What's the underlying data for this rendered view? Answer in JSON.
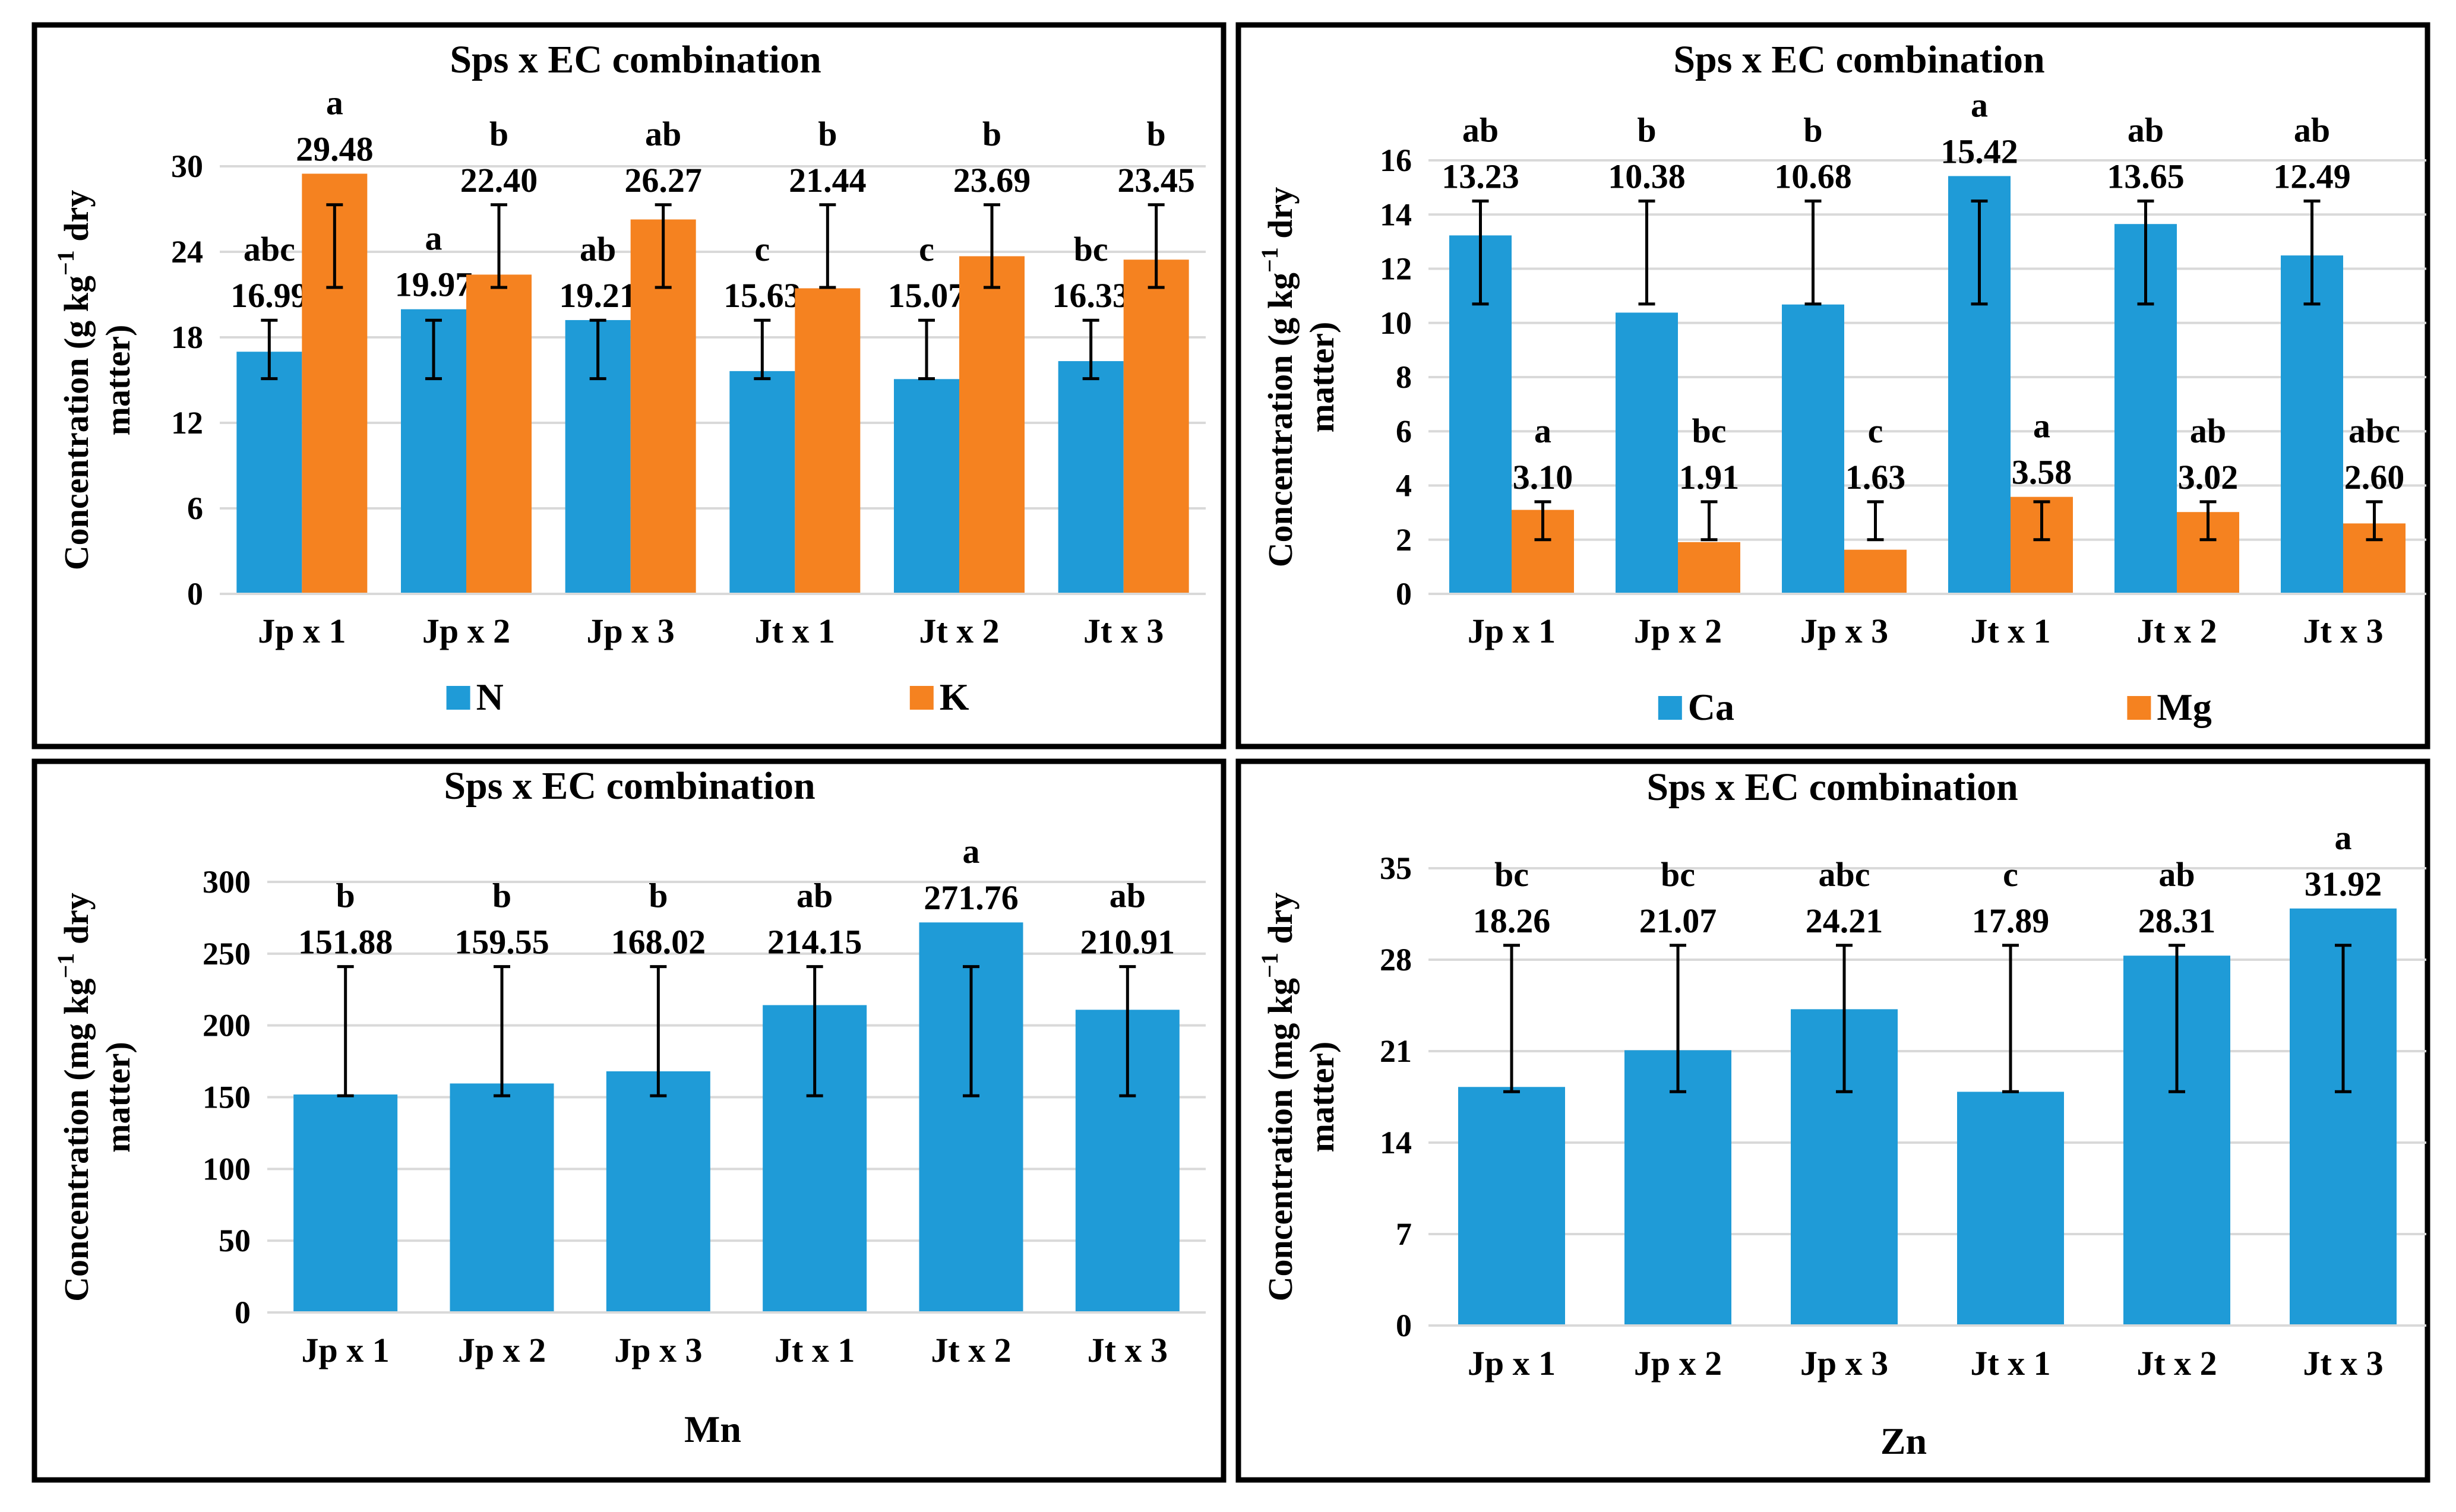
{
  "figure": {
    "colors": {
      "blue": "#1f9bd7",
      "orange": "#f58220",
      "grid": "#d9d9d9",
      "border": "#000000"
    }
  },
  "chart_data": [
    {
      "type": "bar",
      "title": "Sps x EC combination",
      "xlabel": "",
      "ylabel": [
        "Concentration (g kg",
        "−1",
        " dry",
        "matter)"
      ],
      "categories": [
        "Jp x 1",
        "Jp x 2",
        "Jp x 3",
        "Jt x 1",
        "Jt x 2",
        "Jt x 3"
      ],
      "ylim": [
        0,
        30
      ],
      "yticks": [
        0,
        6,
        12,
        18,
        24,
        30
      ],
      "series": [
        {
          "name": "N",
          "color": "#1f9bd7",
          "values": [
            16.99,
            19.97,
            19.21,
            15.63,
            15.07,
            16.33
          ],
          "value_labels": [
            "16.99",
            "19.97",
            "19.21",
            "15.63",
            "15.07",
            "16.33"
          ],
          "letters": [
            "abc",
            "a",
            "ab",
            "c",
            "c",
            "bc"
          ],
          "error_low": [
            15.1,
            15.1,
            15.1,
            15.1,
            15.1,
            15.1
          ],
          "error_high": [
            19.2,
            19.2,
            19.2,
            19.2,
            19.2,
            19.2
          ]
        },
        {
          "name": "K",
          "color": "#f58220",
          "values": [
            29.48,
            22.4,
            26.27,
            21.44,
            23.69,
            23.45
          ],
          "value_labels": [
            "29.48",
            "22.40",
            "26.27",
            "21.44",
            "23.69",
            "23.45"
          ],
          "letters": [
            "a",
            "b",
            "ab",
            "b",
            "b",
            "b"
          ],
          "error_low": [
            21.5,
            21.5,
            21.5,
            21.5,
            21.5,
            21.5
          ],
          "error_high": [
            27.3,
            27.3,
            27.3,
            27.3,
            27.3,
            27.3
          ]
        }
      ],
      "legend": [
        "N",
        "K"
      ],
      "legend_position": "bottom"
    },
    {
      "type": "bar",
      "title": "Sps x EC combination",
      "xlabel": "",
      "ylabel": [
        "Concentration (g kg",
        "−1",
        " dry",
        "matter)"
      ],
      "categories": [
        "Jp x 1",
        "Jp x 2",
        "Jp x 3",
        "Jt x 1",
        "Jt x 2",
        "Jt x 3"
      ],
      "ylim": [
        0,
        16
      ],
      "yticks": [
        0,
        2,
        4,
        6,
        8,
        10,
        12,
        14,
        16
      ],
      "series": [
        {
          "name": "Ca",
          "color": "#1f9bd7",
          "values": [
            13.23,
            10.38,
            10.68,
            15.42,
            13.65,
            12.49
          ],
          "value_labels": [
            "13.23",
            "10.38",
            "10.68",
            "15.42",
            "13.65",
            "12.49"
          ],
          "letters": [
            "ab",
            "b",
            "b",
            "a",
            "ab",
            "ab"
          ],
          "error_low": [
            10.7,
            10.7,
            10.7,
            10.7,
            10.7,
            10.7
          ],
          "error_high": [
            14.5,
            14.5,
            14.5,
            14.5,
            14.5,
            14.5
          ]
        },
        {
          "name": "Mg",
          "color": "#f58220",
          "values": [
            3.1,
            1.91,
            1.63,
            3.58,
            3.02,
            2.6
          ],
          "value_labels": [
            "3.10",
            "1.91",
            "1.63",
            "3.58",
            "3.02",
            "2.60"
          ],
          "letters": [
            "a",
            "bc",
            "c",
            "a",
            "ab",
            "abc"
          ],
          "error_low": [
            2.0,
            2.0,
            2.0,
            2.0,
            2.0,
            2.0
          ],
          "error_high": [
            3.4,
            3.4,
            3.4,
            3.4,
            3.4,
            3.4
          ]
        }
      ],
      "legend": [
        "Ca",
        "Mg"
      ],
      "legend_position": "bottom"
    },
    {
      "type": "bar",
      "title": "Sps x EC combination",
      "xlabel": "Mn",
      "ylabel": [
        "Concentration (mg kg",
        "−1",
        " dry",
        "matter)"
      ],
      "categories": [
        "Jp x 1",
        "Jp x 2",
        "Jp x 3",
        "Jt x 1",
        "Jt x 2",
        "Jt x 3"
      ],
      "ylim": [
        0,
        300
      ],
      "yticks": [
        0,
        50,
        100,
        150,
        200,
        250,
        300
      ],
      "series": [
        {
          "name": "Mn",
          "color": "#1f9bd7",
          "values": [
            151.88,
            159.55,
            168.02,
            214.15,
            271.76,
            210.91
          ],
          "value_labels": [
            "151.88",
            "159.55",
            "168.02",
            "214.15",
            "271.76",
            "210.91"
          ],
          "letters": [
            "b",
            "b",
            "b",
            "ab",
            "a",
            "ab"
          ],
          "error_low": [
            151,
            151,
            151,
            151,
            151,
            151
          ],
          "error_high": [
            241,
            241,
            241,
            241,
            241,
            241
          ]
        }
      ],
      "legend": [],
      "legend_position": "none"
    },
    {
      "type": "bar",
      "title": "Sps x EC combination",
      "xlabel": "Zn",
      "ylabel": [
        "Concentration (mg kg",
        "−1",
        " dry",
        "matter)"
      ],
      "categories": [
        "Jp x 1",
        "Jp x 2",
        "Jp x 3",
        "Jt x 1",
        "Jt x 2",
        "Jt x 3"
      ],
      "ylim": [
        0,
        35
      ],
      "yticks": [
        0,
        7,
        14,
        21,
        28,
        35
      ],
      "series": [
        {
          "name": "Zn",
          "color": "#1f9bd7",
          "values": [
            18.26,
            21.07,
            24.21,
            17.89,
            28.31,
            31.92
          ],
          "value_labels": [
            "18.26",
            "21.07",
            "24.21",
            "17.89",
            "28.31",
            "31.92"
          ],
          "letters": [
            "bc",
            "bc",
            "abc",
            "c",
            "ab",
            "a"
          ],
          "error_low": [
            17.9,
            17.9,
            17.9,
            17.9,
            17.9,
            17.9
          ],
          "error_high": [
            29.1,
            29.1,
            29.1,
            29.1,
            29.1,
            29.1
          ]
        }
      ],
      "legend": [],
      "legend_position": "none"
    }
  ]
}
